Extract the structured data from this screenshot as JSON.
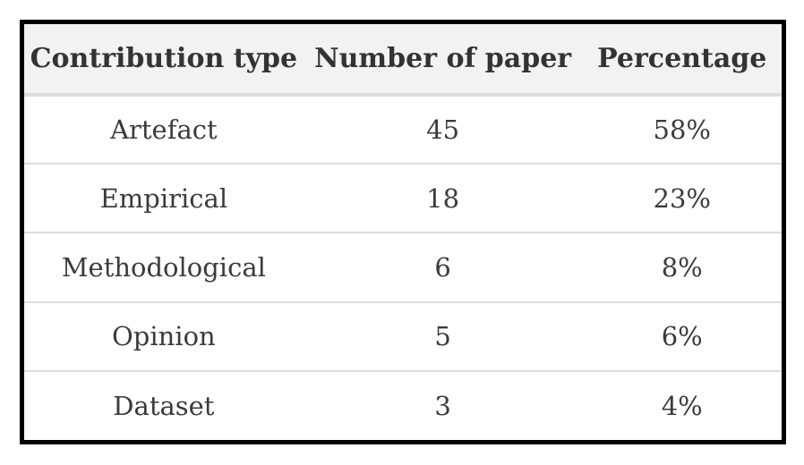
{
  "chart_data": {
    "type": "table",
    "title": "",
    "columns": [
      "Contribution type",
      "Number of paper",
      "Percentage"
    ],
    "rows": [
      [
        "Artefact",
        "45",
        "58%"
      ],
      [
        "Empirical",
        "18",
        "23%"
      ],
      [
        "Methodological",
        "6",
        "8%"
      ],
      [
        "Opinion",
        "5",
        "6%"
      ],
      [
        "Dataset",
        "3",
        "4%"
      ]
    ],
    "layout": {
      "header_background": "#f2f2f2",
      "outer_border_color": "#000000",
      "separator_color": "#dddddd",
      "header_text_color": "#333333",
      "body_text_color": "#3b3b3b",
      "text_alignment": "center"
    }
  }
}
